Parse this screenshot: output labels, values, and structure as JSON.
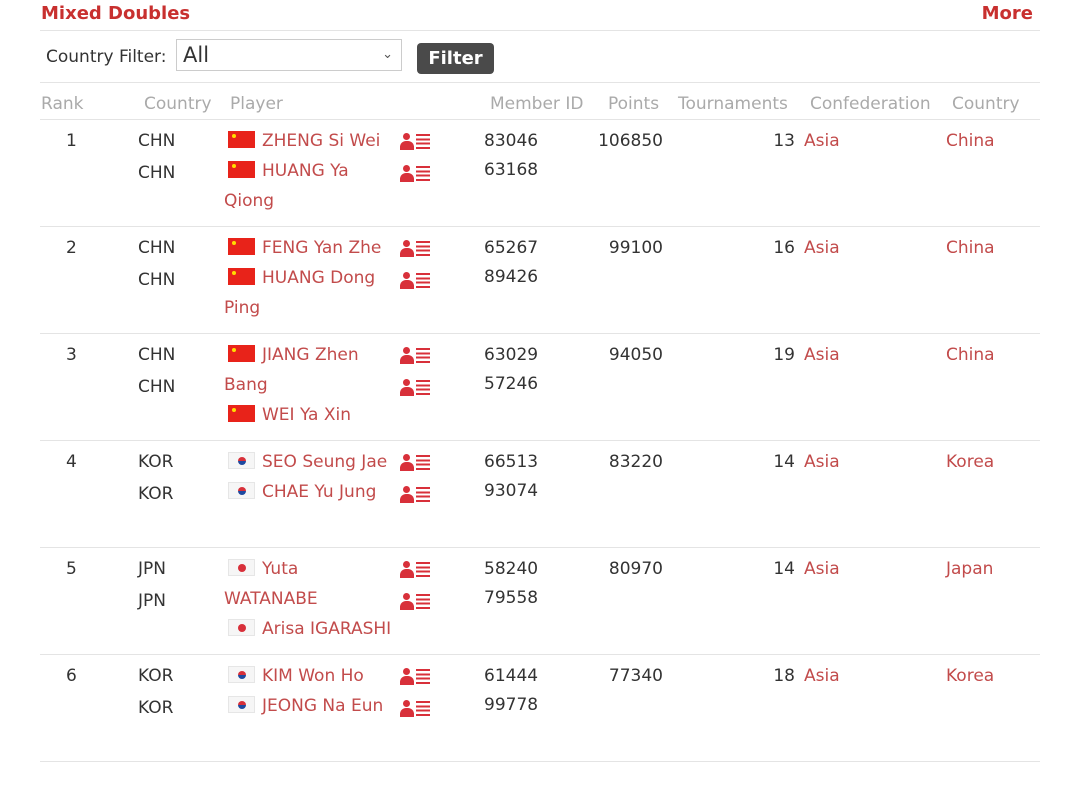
{
  "header": {
    "title": "Mixed Doubles",
    "more": "More"
  },
  "filter": {
    "label": "Country Filter:",
    "selected": "All",
    "button": "Filter"
  },
  "columns": [
    "Rank",
    "Country",
    "Player",
    "Member ID",
    "Points",
    "Tournaments",
    "Confederation",
    "Country"
  ],
  "colors": {
    "accent": "#c8302f",
    "link": "#c24b4b"
  },
  "rows": [
    {
      "rank": "1",
      "codes": [
        "CHN",
        "CHN"
      ],
      "players": [
        {
          "flag": "cn",
          "name": "ZHENG Si Wei"
        },
        {
          "flag": "cn",
          "name": "HUANG Ya Qiong"
        }
      ],
      "ids": [
        "83046",
        "63168"
      ],
      "points": "106850",
      "tournaments": "13",
      "confederation": "Asia",
      "country": "China"
    },
    {
      "rank": "2",
      "codes": [
        "CHN",
        "CHN"
      ],
      "players": [
        {
          "flag": "cn",
          "name": "FENG Yan Zhe"
        },
        {
          "flag": "cn",
          "name": "HUANG Dong Ping"
        }
      ],
      "ids": [
        "65267",
        "89426"
      ],
      "points": "99100",
      "tournaments": "16",
      "confederation": "Asia",
      "country": "China"
    },
    {
      "rank": "3",
      "codes": [
        "CHN",
        "CHN"
      ],
      "players": [
        {
          "flag": "cn",
          "name": "JIANG Zhen Bang"
        },
        {
          "flag": "cn",
          "name": "WEI Ya Xin"
        }
      ],
      "ids": [
        "63029",
        "57246"
      ],
      "points": "94050",
      "tournaments": "19",
      "confederation": "Asia",
      "country": "China"
    },
    {
      "rank": "4",
      "codes": [
        "KOR",
        "KOR"
      ],
      "players": [
        {
          "flag": "kr",
          "name": "SEO Seung Jae"
        },
        {
          "flag": "kr",
          "name": "CHAE Yu Jung"
        }
      ],
      "ids": [
        "66513",
        "93074"
      ],
      "points": "83220",
      "tournaments": "14",
      "confederation": "Asia",
      "country": "Korea"
    },
    {
      "rank": "5",
      "codes": [
        "JPN",
        "JPN"
      ],
      "players": [
        {
          "flag": "jp",
          "name": "Yuta WATANABE"
        },
        {
          "flag": "jp",
          "name": "Arisa IGARASHI"
        }
      ],
      "ids": [
        "58240",
        "79558"
      ],
      "points": "80970",
      "tournaments": "14",
      "confederation": "Asia",
      "country": "Japan"
    },
    {
      "rank": "6",
      "codes": [
        "KOR",
        "KOR"
      ],
      "players": [
        {
          "flag": "kr",
          "name": "KIM Won Ho"
        },
        {
          "flag": "kr",
          "name": "JEONG Na Eun"
        }
      ],
      "ids": [
        "61444",
        "99778"
      ],
      "points": "77340",
      "tournaments": "18",
      "confederation": "Asia",
      "country": "Korea"
    }
  ]
}
